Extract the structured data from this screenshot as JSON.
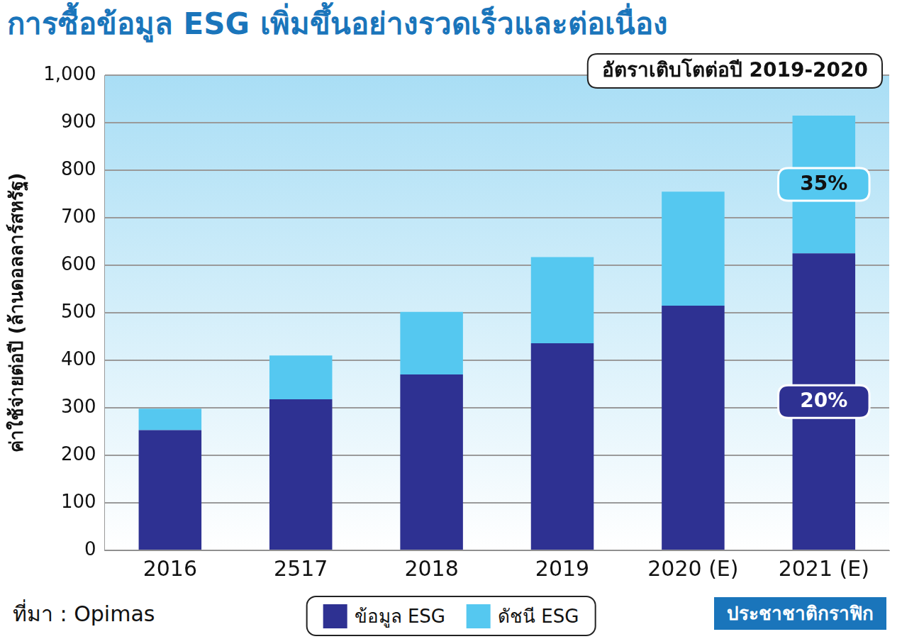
{
  "chart_data": {
    "type": "bar",
    "title": "การซื้อข้อมูล ESG เพิ่มขึ้นอย่างรวดเร็วและต่อเนื่อง",
    "y_label": "ค่าใช้จ่ายต่อปี (ล้านดอลลาร์สหรัฐ)",
    "categories": [
      "2016",
      "2517",
      "2018",
      "2019",
      "2020 (E)",
      "2021 (E)"
    ],
    "series": [
      {
        "name": "ข้อมูล ESG",
        "color": "#2e3192",
        "values": [
          253,
          318,
          370,
          436,
          515,
          625
        ]
      },
      {
        "name": "ดัชนี ESG",
        "color": "#55c8f0",
        "values": [
          45,
          92,
          132,
          181,
          240,
          290
        ]
      }
    ],
    "stacked": true,
    "ylim": [
      0,
      1000
    ],
    "yticks": [
      0,
      100,
      200,
      300,
      400,
      500,
      600,
      700,
      800,
      900,
      {
        "value": 1000,
        "label": "1,000"
      }
    ],
    "grid": true,
    "legend": "bottom",
    "data_labels": false,
    "annotations": [
      {
        "text": "อัตราเติบโตต่อปี 2019-2020"
      },
      {
        "text": "35%",
        "category": "2021 (E)",
        "series": "ดัชนี ESG"
      },
      {
        "text": "20%",
        "category": "2021 (E)",
        "series": "ข้อมูล ESG"
      }
    ],
    "source": "ที่มา : Opimas",
    "credit": "ประชาชาติกราฟิก"
  }
}
